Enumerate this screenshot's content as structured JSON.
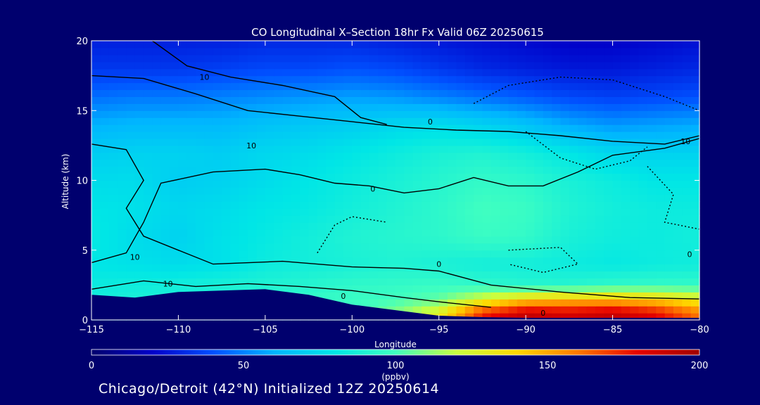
{
  "colors": {
    "background": "#00006e",
    "text": "#ffffff",
    "contour": "#000000"
  },
  "footer": "Chicago/Detroit (42°N) Initialized 12Z 20250614",
  "chart_data": {
    "type": "heatmap",
    "title": "CO Longitudinal X–Section 18hr  Fx Valid 06Z 20250615",
    "xlabel": "Longitude",
    "ylabel": "Altitude (km)",
    "xlim": [
      -115,
      -80
    ],
    "ylim": [
      0,
      20
    ],
    "xticks": [
      -115,
      -110,
      -105,
      -100,
      -95,
      -90,
      -85,
      -80
    ],
    "xtick_labels": [
      "−115",
      "−110",
      "−105",
      "−100",
      "−95",
      "−90",
      "−85",
      "−80"
    ],
    "yticks": [
      0,
      5,
      10,
      15,
      20
    ],
    "ytick_labels": [
      "0",
      "5",
      "10",
      "15",
      "20"
    ],
    "colorbar": {
      "label": "(ppbv)",
      "range": [
        0,
        200
      ],
      "ticks": [
        0,
        50,
        100,
        150,
        200
      ],
      "tick_labels": [
        "0",
        "50",
        "100",
        "150",
        "200"
      ],
      "colormap": [
        "#00006e",
        "#0000c8",
        "#0050ff",
        "#00b4ff",
        "#00e6e6",
        "#40ffc0",
        "#c8ff40",
        "#ffd800",
        "#ff7800",
        "#e60000",
        "#a00000"
      ]
    },
    "contour_labels": [
      "10",
      "0",
      "10",
      "0",
      "10",
      "10",
      "0",
      "0",
      "10",
      "0",
      "0"
    ],
    "altitudes": [
      0.5,
      1.5,
      2.5,
      4,
      6,
      8,
      10,
      12,
      14,
      16,
      18,
      20
    ],
    "longitudes": [
      -115,
      -112.5,
      -110,
      -107.5,
      -105,
      -102.5,
      -100,
      -97.5,
      -95,
      -92.5,
      -90,
      -87.5,
      -85,
      -82.5,
      -80
    ],
    "values": [
      [
        88,
        88,
        90,
        92,
        95,
        98,
        100,
        110,
        130,
        175,
        190,
        185,
        190,
        180,
        160
      ],
      [
        86,
        88,
        88,
        90,
        94,
        96,
        98,
        100,
        105,
        125,
        140,
        145,
        145,
        140,
        130
      ],
      [
        84,
        85,
        86,
        88,
        90,
        92,
        95,
        96,
        98,
        95,
        92,
        92,
        95,
        96,
        96
      ],
      [
        80,
        78,
        76,
        78,
        84,
        86,
        88,
        90,
        88,
        86,
        86,
        84,
        82,
        84,
        85
      ],
      [
        82,
        76,
        72,
        78,
        82,
        86,
        90,
        92,
        94,
        98,
        96,
        88,
        85,
        84,
        86
      ],
      [
        80,
        78,
        74,
        76,
        80,
        82,
        86,
        90,
        94,
        100,
        98,
        90,
        86,
        84,
        84
      ],
      [
        76,
        76,
        70,
        72,
        76,
        80,
        84,
        88,
        92,
        96,
        94,
        88,
        84,
        80,
        80
      ],
      [
        70,
        72,
        72,
        70,
        74,
        76,
        80,
        84,
        88,
        90,
        86,
        80,
        74,
        72,
        72
      ],
      [
        60,
        62,
        62,
        62,
        66,
        68,
        70,
        74,
        76,
        72,
        66,
        58,
        54,
        56,
        58
      ],
      [
        46,
        48,
        48,
        50,
        52,
        54,
        56,
        54,
        50,
        46,
        42,
        38,
        36,
        38,
        40
      ],
      [
        34,
        34,
        34,
        36,
        38,
        38,
        40,
        38,
        34,
        30,
        28,
        26,
        26,
        28,
        30
      ],
      [
        28,
        28,
        28,
        28,
        30,
        30,
        30,
        28,
        26,
        24,
        22,
        20,
        20,
        22,
        24
      ]
    ],
    "terrain_km": [
      1.8,
      1.6,
      2.0,
      2.1,
      2.2,
      1.8,
      1.1,
      0.7,
      0.3,
      0.2,
      0.15,
      0.15,
      0.15,
      0.15,
      0.15
    ]
  }
}
